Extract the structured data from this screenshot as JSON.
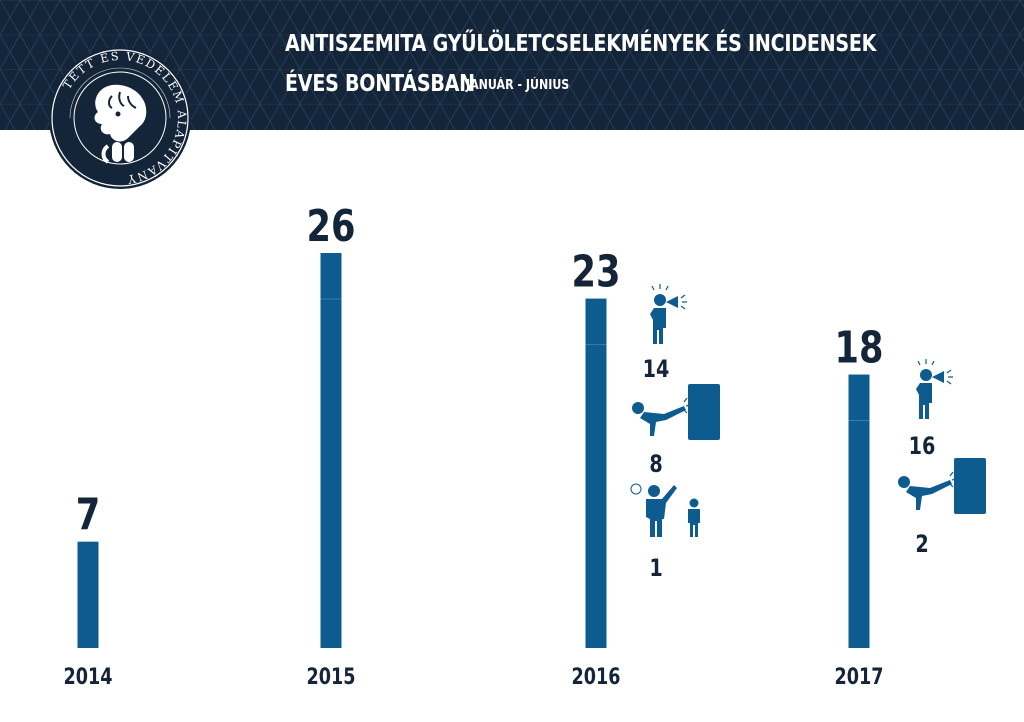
{
  "header": {
    "title_line_1": "ANTISZEMITA GYŰLÖLETCSELEKMÉNYEK ÉS INCIDENSEK",
    "title_line_2": "ÉVES BONTÁSBAN",
    "subtitle": "JANUÁR - JÚNIUS",
    "background_color": "#14253a"
  },
  "logo": {
    "ring_text": "TETT ÉS VÉDELEM ALAPÍTVÁNY",
    "icon": "lion-head-with-tablets-icon"
  },
  "chart_data": {
    "type": "bar",
    "title": "ANTISZEMITA GYŰLÖLETCSELEKMÉNYEK ÉS INCIDENSEK ÉVES BONTÁSBAN",
    "subtitle": "JANUÁR - JÚNIUS",
    "categories": [
      "2014",
      "2015",
      "2016",
      "2017"
    ],
    "values": [
      7,
      26,
      23,
      18
    ],
    "ylim": [
      0,
      26
    ],
    "grid": false,
    "bar_color": "#0e5b90",
    "breakdown": [
      null,
      null,
      [
        {
          "value": "14",
          "icon": "megaphone-person-icon"
        },
        {
          "value": "8",
          "icon": "kicking-person-icon"
        },
        {
          "value": "1",
          "icon": "assault-person-icon"
        }
      ],
      [
        {
          "value": "16",
          "icon": "megaphone-person-icon"
        },
        {
          "value": "2",
          "icon": "kicking-person-icon"
        }
      ]
    ]
  }
}
